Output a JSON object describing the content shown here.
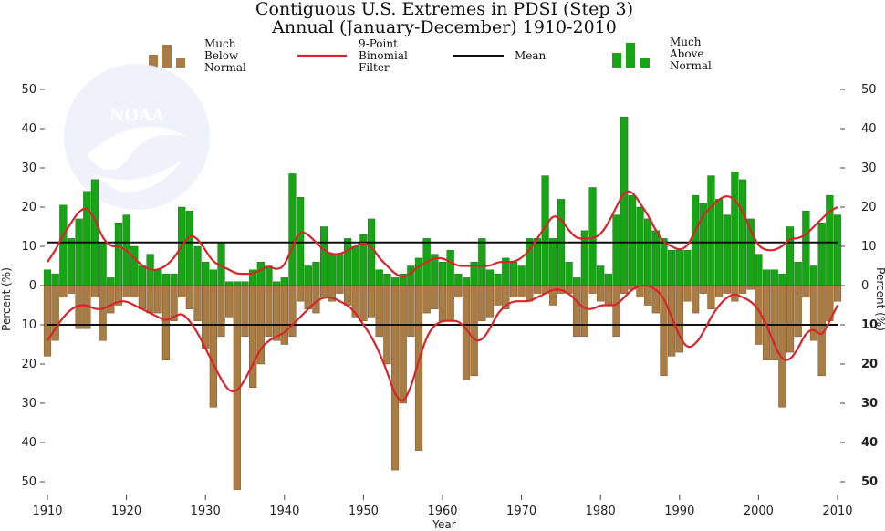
{
  "chart_data": {
    "type": "bar",
    "title": "Contiguous U.S. Extremes in PDSI (Step 3)",
    "subtitle": "Annual (January-December) 1910-2010",
    "xlabel": "Year",
    "ylabel_left": "Percent (%)",
    "ylabel_right": "Percent (%)",
    "xlim": [
      1910,
      2010
    ],
    "x_ticks": [
      "1910",
      "1920",
      "1930",
      "1940",
      "1950",
      "1960",
      "1970",
      "1980",
      "1990",
      "2000",
      "2010"
    ],
    "y_ticks": [
      "50",
      "40",
      "30",
      "20",
      "10",
      "0",
      "10",
      "20",
      "30",
      "40",
      "50"
    ],
    "ylim": [
      -52,
      50
    ],
    "legend": {
      "below_label": "Much Below Normal",
      "filter_label": "9-Point Binomial Filter",
      "mean_label": "Mean",
      "above_label": "Much Above Normal"
    },
    "watermark": "NOAA",
    "colors": {
      "above": "#18a515",
      "below": "#a97c44",
      "filter": "#d8242a",
      "mean": "#111111"
    },
    "years": [
      1910,
      1911,
      1912,
      1913,
      1914,
      1915,
      1916,
      1917,
      1918,
      1919,
      1920,
      1921,
      1922,
      1923,
      1924,
      1925,
      1926,
      1927,
      1928,
      1929,
      1930,
      1931,
      1932,
      1933,
      1934,
      1935,
      1936,
      1937,
      1938,
      1939,
      1940,
      1941,
      1942,
      1943,
      1944,
      1945,
      1946,
      1947,
      1948,
      1949,
      1950,
      1951,
      1952,
      1953,
      1954,
      1955,
      1956,
      1957,
      1958,
      1959,
      1960,
      1961,
      1962,
      1963,
      1964,
      1965,
      1966,
      1967,
      1968,
      1969,
      1970,
      1971,
      1972,
      1973,
      1974,
      1975,
      1976,
      1977,
      1978,
      1979,
      1980,
      1981,
      1982,
      1983,
      1984,
      1985,
      1986,
      1987,
      1988,
      1989,
      1990,
      1991,
      1992,
      1993,
      1994,
      1995,
      1996,
      1997,
      1998,
      1999,
      2000,
      2001,
      2002,
      2003,
      2004,
      2005,
      2006,
      2007,
      2008,
      2009,
      2010
    ],
    "series": [
      {
        "name": "Much Above Normal",
        "values": [
          4,
          3,
          20.5,
          12,
          17,
          24,
          27,
          11,
          2,
          16,
          18,
          10,
          5,
          8,
          4,
          3,
          3,
          20,
          19,
          10,
          6,
          4,
          11,
          1,
          1,
          1,
          4,
          6,
          5,
          1,
          2,
          28.5,
          22.5,
          5,
          6,
          15,
          8,
          8,
          12,
          10,
          13,
          17,
          4,
          3,
          2,
          3,
          5,
          7,
          12,
          8,
          6,
          9,
          3,
          2,
          6,
          12,
          4,
          3,
          7,
          6,
          5,
          12,
          12,
          28,
          12,
          22,
          6,
          2,
          14,
          25,
          5,
          3,
          18,
          43,
          23,
          20,
          17,
          14,
          12,
          9,
          9,
          9,
          23,
          21,
          28,
          22,
          18,
          29,
          27,
          17,
          8,
          4,
          4,
          3,
          15,
          6,
          19,
          5,
          16,
          23,
          18
        ],
        "color_key": "above"
      },
      {
        "name": "Much Below Normal",
        "values": [
          18,
          14,
          3,
          2,
          11,
          11,
          3,
          14,
          7,
          5,
          3,
          3,
          6,
          7,
          7,
          19,
          9,
          3,
          6,
          9,
          16,
          31,
          13,
          8,
          52,
          13,
          26,
          20,
          13,
          14,
          15,
          13,
          4,
          6,
          7,
          3,
          4,
          2,
          5,
          8,
          9,
          8,
          13,
          20,
          47,
          30,
          13,
          42,
          7,
          6,
          9,
          9,
          3,
          24,
          23,
          9,
          8,
          5,
          6,
          3,
          3,
          4,
          2,
          2,
          5,
          2,
          2,
          13,
          13,
          2,
          4,
          5,
          13,
          2,
          1,
          3,
          5,
          7,
          23,
          18,
          17,
          4,
          7,
          2,
          6,
          3,
          2,
          4,
          2,
          1,
          15,
          19,
          19,
          31,
          17,
          13,
          3,
          14,
          23,
          9,
          4
        ],
        "color_key": "below"
      },
      {
        "name": "9-Point Binomial Filter",
        "above": [
          6,
          9,
          13,
          16,
          19,
          20,
          17,
          12,
          10,
          10,
          9,
          7,
          5,
          4,
          4,
          5,
          7,
          10,
          13,
          12,
          9,
          6,
          5,
          4,
          3,
          3,
          3,
          4,
          5,
          4,
          5,
          10,
          14,
          13,
          11,
          9,
          8,
          8,
          9,
          10,
          11,
          10,
          7,
          5,
          3,
          2,
          3,
          5,
          6,
          7,
          7,
          6,
          5,
          5,
          5,
          5,
          5,
          6,
          6,
          6,
          7,
          9,
          12,
          15,
          18,
          17,
          14,
          12,
          12,
          12,
          13,
          16,
          20,
          24,
          24,
          21,
          18,
          14,
          11,
          10,
          9,
          10,
          14,
          18,
          20,
          22,
          23,
          22,
          19,
          14,
          10,
          9,
          9,
          10,
          12,
          12,
          13,
          15,
          17,
          19,
          20
        ],
        "below": [
          14,
          11,
          8,
          6,
          5,
          5,
          6,
          6,
          5,
          4,
          4,
          5,
          6,
          7,
          8,
          9,
          8,
          7,
          9,
          12,
          16,
          20,
          24,
          27,
          27,
          24,
          20,
          16,
          14,
          13,
          12,
          10,
          8,
          6,
          4,
          3,
          3,
          4,
          5,
          7,
          10,
          13,
          17,
          22,
          28,
          30,
          26,
          19,
          13,
          10,
          9,
          9,
          9,
          11,
          14,
          14,
          11,
          7,
          5,
          4,
          4,
          4,
          3,
          2,
          1,
          1,
          2,
          4,
          6,
          6,
          5,
          5,
          5,
          3,
          1,
          0,
          0,
          1,
          3,
          8,
          13,
          16,
          15,
          12,
          8,
          5,
          3,
          2,
          3,
          4,
          6,
          10,
          15,
          19,
          19,
          16,
          12,
          11,
          13,
          9,
          5
        ]
      },
      {
        "name": "Mean",
        "above_value": 11,
        "below_value": 10
      }
    ]
  }
}
